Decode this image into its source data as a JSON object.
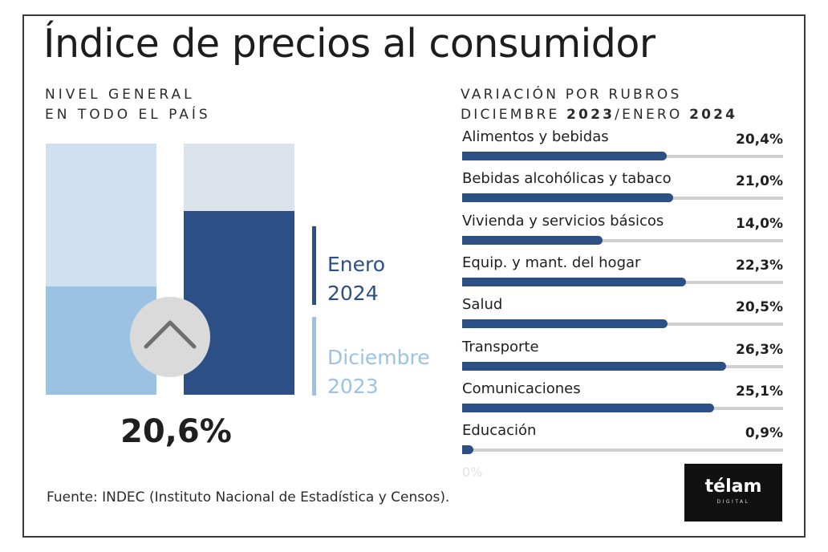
{
  "title": "Índice de precios al consumidor",
  "left": {
    "subtitle_line1": "NIVEL GENERAL",
    "subtitle_line2": "EN TODO EL PAÍS",
    "legend_current_month": "Enero",
    "legend_current_year": "2024",
    "legend_previous_month": "Diciembre",
    "legend_previous_year": "2023",
    "value": "20,6%",
    "icon": "chevron-up-icon"
  },
  "right": {
    "subtitle_line1": "VARIACIÓN POR RUBROS",
    "subtitle_line2_a": "DICIEMBRE ",
    "subtitle_line2_b": "2023",
    "subtitle_line2_c": "/ENERO ",
    "subtitle_line2_d": "2024",
    "zero_label": "0%"
  },
  "source": "Fuente: INDEC (Instituto Nacional de Estadística y Censos).",
  "logo": {
    "main": "télam",
    "sub": "DIGITAL"
  },
  "colors": {
    "dark_blue": "#2c4f86",
    "light_blue": "#9cc2e3",
    "pale_blue": "#cfe0f0",
    "track": "#cfcfcf"
  },
  "chart_data": [
    {
      "type": "bar",
      "categories": [
        "Diciembre 2023",
        "Enero 2024"
      ],
      "values": [
        43,
        73
      ],
      "title": "NIVEL GENERAL EN TODO EL PAÍS",
      "annotation": "20,6%"
    },
    {
      "type": "bar",
      "orientation": "horizontal",
      "title": "VARIACIÓN POR RUBROS DICIEMBRE 2023/ENERO 2024",
      "categories": [
        "Alimentos y bebidas",
        "Bebidas alcohólicas y tabaco",
        "Vivienda y servicios básicos",
        "Equip. y mant. del hogar",
        "Salud",
        "Transporte",
        "Comunicaciones",
        "Educación"
      ],
      "values": [
        20.4,
        21.0,
        14.0,
        22.3,
        20.5,
        26.3,
        25.1,
        0.9
      ],
      "value_labels": [
        "20,4%",
        "21,0%",
        "14,0%",
        "22,3%",
        "20,5%",
        "26,3%",
        "25,1%",
        "0,9%"
      ],
      "xlim": [
        0,
        32
      ],
      "xlabel": "0%"
    }
  ]
}
